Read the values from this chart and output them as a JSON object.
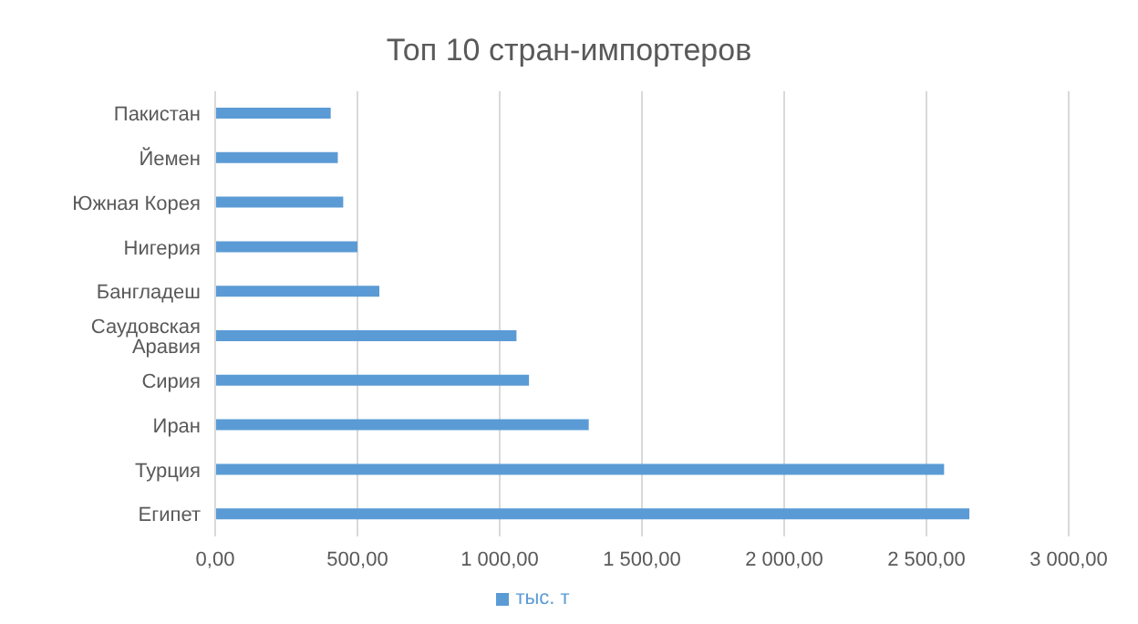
{
  "chart_data": {
    "type": "bar",
    "orientation": "horizontal",
    "title": "Топ 10 стран-импортеров",
    "categories": [
      "Пакистан",
      "Йемен",
      "Южная Корея",
      "Нигерия",
      "Бангладеш",
      "Саудовская Аравия",
      "Сирия",
      "Иран",
      "Турция",
      "Египет"
    ],
    "series": [
      {
        "name": "тыс. т",
        "color": "#5b9bd5",
        "values": [
          406,
          431,
          450,
          500,
          577,
          1059,
          1103,
          1313,
          2562,
          2651
        ]
      }
    ],
    "xlim": [
      0,
      3000
    ],
    "xticks": [
      {
        "value": 0,
        "label": "0,00"
      },
      {
        "value": 500,
        "label": "500,00"
      },
      {
        "value": 1000,
        "label": "1 000,00"
      },
      {
        "value": 1500,
        "label": "1 500,00"
      },
      {
        "value": 2000,
        "label": "2 000,00"
      },
      {
        "value": 2500,
        "label": "2 500,00"
      },
      {
        "value": 3000,
        "label": "3 000,00"
      }
    ],
    "grid": "x",
    "legend": "bottom"
  }
}
